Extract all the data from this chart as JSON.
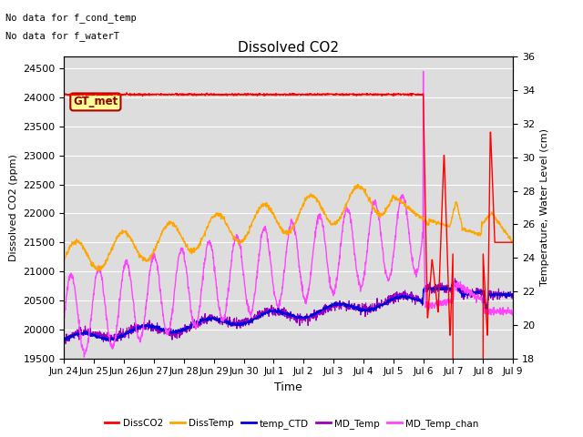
{
  "title": "Dissolved CO2",
  "ylabel_left": "Dissolved CO2 (ppm)",
  "ylabel_right": "Temperature, Water Level (cm)",
  "xlabel": "Time",
  "annotation_line1": "No data for f_cond_temp",
  "annotation_line2": "No data for f_waterT",
  "legend_label": "GT_met",
  "ylim_left": [
    19500,
    24700
  ],
  "ylim_right": [
    18,
    36
  ],
  "yticks_left": [
    19500,
    20000,
    20500,
    21000,
    21500,
    22000,
    22500,
    23000,
    23500,
    24000,
    24500
  ],
  "yticks_right": [
    18,
    20,
    22,
    24,
    26,
    28,
    30,
    32,
    34,
    36
  ],
  "colors": {
    "DissCO2": "#ff0000",
    "DissTemp": "#ffa500",
    "temp_CTD": "#0000dd",
    "MD_Temp": "#9900bb",
    "MD_Temp_chan": "#ff44ff"
  },
  "bg_color": "#dddddd",
  "grid_color": "#ffffff",
  "legend_entries": [
    "DissCO2",
    "DissTemp",
    "temp_CTD",
    "MD_Temp",
    "MD_Temp_chan"
  ]
}
